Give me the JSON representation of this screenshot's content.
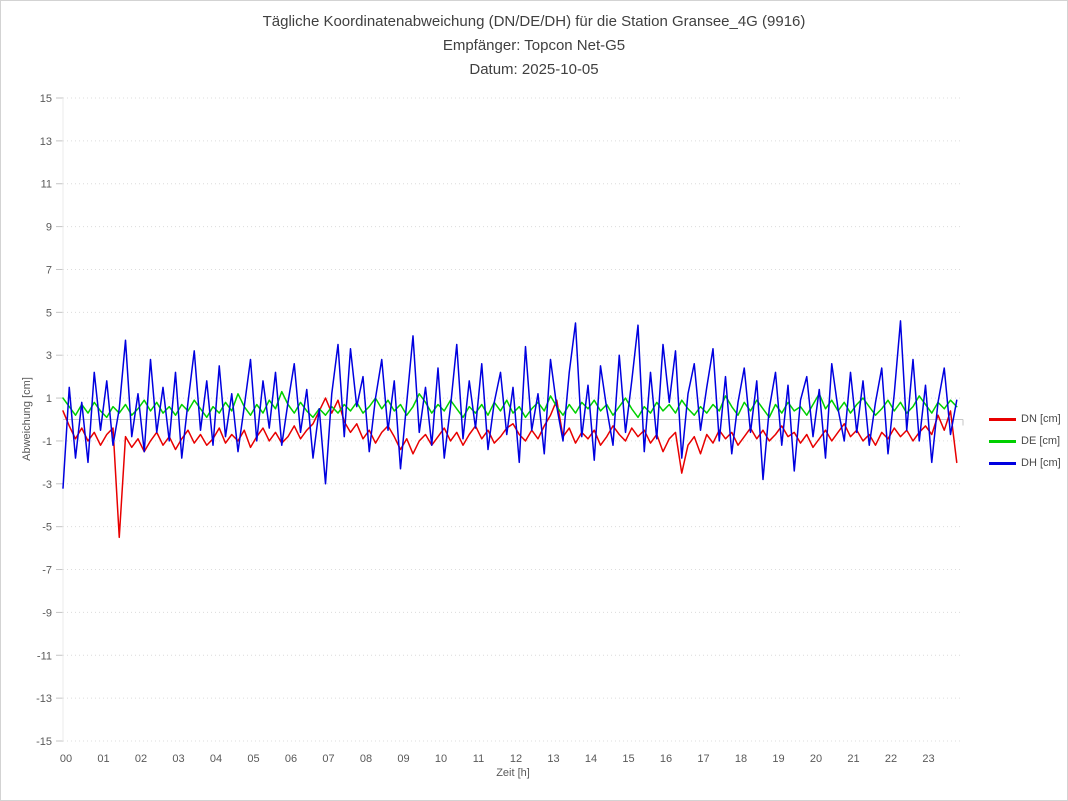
{
  "header": {
    "title": "Tägliche Koordinatenabweichung (DN/DE/DH) für die Station Gransee_4G (9916)",
    "subtitle": "Empfänger: Topcon Net-G5",
    "date_line": "Datum: 2025-10-05"
  },
  "colors": {
    "dn": "#e80000",
    "de": "#00d000",
    "dh": "#0000e0",
    "grid": "#dcdcdc",
    "zero_line": "#c8c8c8",
    "axis_line": "#ebebeb",
    "tick": "#c4c4c4",
    "tick_text": "#595959",
    "title_text": "#404040"
  },
  "chart_data": {
    "type": "line",
    "title": "Tägliche Koordinatenabweichung (DN/DE/DH) für die Station Gransee_4G (9916)",
    "subtitle": "Empfänger: Topcon Net-G5",
    "date_label": "Datum: 2025-10-05",
    "xlabel": "Zeit [h]",
    "ylabel": "Abweichung [cm]",
    "xlim": [
      0,
      24
    ],
    "ylim": [
      -15,
      15
    ],
    "grid": "horizontal-dotted",
    "legend_position": "right",
    "x_ticks": [
      "00",
      "01",
      "02",
      "03",
      "04",
      "05",
      "06",
      "07",
      "08",
      "09",
      "10",
      "11",
      "12",
      "13",
      "14",
      "15",
      "16",
      "17",
      "18",
      "19",
      "20",
      "21",
      "22",
      "23"
    ],
    "y_ticks": [
      15,
      13,
      11,
      9,
      7,
      5,
      3,
      1,
      -1,
      -3,
      -5,
      -7,
      -9,
      -11,
      -13,
      -15
    ],
    "x_minutes_interval": 10,
    "series": [
      {
        "name": "DN [cm]",
        "color": "#e80000",
        "values": [
          0.4,
          -0.3,
          -0.9,
          -0.4,
          -1.0,
          -0.6,
          -1.2,
          -0.7,
          -0.4,
          -5.5,
          -0.8,
          -1.3,
          -0.9,
          -1.5,
          -1.0,
          -0.6,
          -1.2,
          -0.8,
          -1.4,
          -0.9,
          -0.5,
          -1.1,
          -0.7,
          -1.2,
          -0.9,
          -0.4,
          -1.1,
          -0.7,
          -1.0,
          -0.5,
          -1.3,
          -0.8,
          -0.4,
          -1.0,
          -0.6,
          -1.1,
          -0.8,
          -0.3,
          -0.9,
          -0.5,
          -0.2,
          0.4,
          1.0,
          0.3,
          0.9,
          -0.1,
          -0.6,
          -0.2,
          -0.9,
          -0.5,
          -1.1,
          -0.6,
          -0.3,
          -0.8,
          -1.4,
          -0.9,
          -1.6,
          -1.0,
          -0.7,
          -1.2,
          -0.8,
          -0.4,
          -1.0,
          -0.6,
          -1.2,
          -0.7,
          -0.3,
          -0.9,
          -0.5,
          -1.1,
          -0.8,
          -0.4,
          -0.2,
          -0.7,
          -1.0,
          -0.5,
          -0.9,
          -0.3,
          0.2,
          0.9,
          -0.8,
          -0.4,
          -1.1,
          -0.6,
          -0.9,
          -0.5,
          -1.2,
          -0.8,
          -0.3,
          -0.7,
          -1.0,
          -0.4,
          -0.8,
          -0.5,
          -1.1,
          -0.7,
          -1.5,
          -0.9,
          -0.6,
          -2.5,
          -1.2,
          -0.8,
          -1.6,
          -0.7,
          -1.1,
          -0.5,
          -0.9,
          -0.6,
          -1.2,
          -0.8,
          -0.4,
          -0.9,
          -0.5,
          -1.0,
          -0.7,
          -0.3,
          -0.8,
          -0.6,
          -1.1,
          -0.7,
          -1.3,
          -0.9,
          -0.5,
          -1.0,
          -0.6,
          -0.2,
          -0.8,
          -0.5,
          -1.0,
          -0.7,
          -1.2,
          -0.6,
          -0.9,
          -0.4,
          -0.8,
          -0.5,
          -1.0,
          -0.6,
          -0.3,
          -0.7,
          0.2,
          -0.5,
          0.4,
          -2.0
        ]
      },
      {
        "name": "DE [cm]",
        "color": "#00d000",
        "values": [
          1.0,
          0.6,
          0.2,
          0.7,
          0.3,
          0.8,
          0.4,
          0.1,
          0.6,
          0.3,
          0.7,
          0.2,
          0.5,
          0.9,
          0.4,
          0.8,
          0.3,
          0.6,
          0.2,
          0.7,
          0.4,
          0.9,
          0.5,
          0.1,
          0.6,
          0.3,
          0.8,
          0.4,
          1.2,
          0.6,
          0.2,
          0.7,
          0.3,
          0.9,
          0.5,
          1.3,
          0.7,
          0.3,
          0.8,
          0.4,
          0.1,
          0.5,
          0.2,
          0.6,
          0.3,
          0.7,
          0.4,
          0.8,
          0.3,
          0.6,
          1.0,
          0.5,
          0.9,
          0.4,
          0.7,
          0.2,
          0.6,
          1.2,
          0.8,
          0.3,
          0.7,
          0.4,
          0.9,
          0.5,
          0.1,
          0.6,
          0.3,
          0.7,
          0.2,
          0.8,
          0.4,
          0.9,
          0.3,
          0.6,
          0.1,
          0.5,
          0.8,
          0.4,
          1.1,
          0.6,
          0.2,
          0.7,
          0.3,
          0.8,
          0.5,
          0.9,
          0.4,
          0.7,
          0.2,
          0.6,
          1.0,
          0.5,
          0.1,
          0.6,
          0.3,
          0.8,
          0.4,
          0.7,
          0.3,
          0.9,
          0.5,
          0.2,
          0.6,
          0.3,
          0.7,
          0.4,
          1.1,
          0.6,
          0.2,
          0.8,
          0.4,
          0.9,
          0.5,
          0.1,
          0.7,
          0.3,
          0.8,
          0.4,
          0.6,
          0.2,
          0.7,
          1.2,
          0.5,
          0.9,
          0.4,
          0.8,
          0.3,
          0.7,
          1.0,
          0.6,
          0.2,
          0.5,
          0.9,
          0.4,
          0.8,
          0.3,
          0.6,
          1.1,
          0.7,
          0.3,
          0.8,
          0.5,
          0.9,
          0.6
        ]
      },
      {
        "name": "DH [cm]",
        "color": "#0000e0",
        "values": [
          -3.2,
          1.5,
          -1.8,
          0.8,
          -2.0,
          2.2,
          -0.5,
          1.8,
          -1.2,
          0.5,
          3.7,
          -0.8,
          1.2,
          -1.5,
          2.8,
          -0.6,
          1.5,
          -1.0,
          2.2,
          -1.8,
          0.8,
          3.2,
          -0.5,
          1.8,
          -1.2,
          2.5,
          -0.8,
          1.2,
          -1.5,
          0.6,
          2.8,
          -1.0,
          1.8,
          -0.4,
          2.2,
          -1.2,
          0.8,
          2.6,
          -0.6,
          1.4,
          -1.8,
          0.5,
          -3.0,
          1.2,
          3.5,
          -0.8,
          3.3,
          0.6,
          2.0,
          -1.5,
          1.0,
          2.8,
          -0.5,
          1.8,
          -2.3,
          0.8,
          3.9,
          -0.6,
          1.5,
          -1.2,
          2.4,
          -1.8,
          0.6,
          3.5,
          -0.9,
          1.8,
          -0.4,
          2.6,
          -1.4,
          0.8,
          2.2,
          -0.7,
          1.5,
          -2.0,
          3.4,
          -0.5,
          1.2,
          -1.6,
          2.8,
          0.6,
          -1.0,
          2.2,
          4.5,
          -0.8,
          1.6,
          -1.9,
          2.5,
          0.5,
          -1.2,
          3.0,
          -0.6,
          1.8,
          4.4,
          -1.5,
          2.2,
          -0.9,
          3.5,
          0.8,
          3.2,
          -1.8,
          1.2,
          2.6,
          -0.5,
          1.5,
          3.3,
          -1.0,
          2.0,
          -1.6,
          0.8,
          2.4,
          -0.6,
          1.8,
          -2.8,
          0.5,
          2.2,
          -1.2,
          1.6,
          -2.4,
          0.9,
          2.0,
          -0.8,
          1.4,
          -1.8,
          2.6,
          0.5,
          -1.0,
          2.2,
          -0.6,
          1.8,
          -1.2,
          0.8,
          2.4,
          -1.6,
          1.2,
          4.6,
          -0.5,
          2.8,
          -1.0,
          1.6,
          -2.0,
          0.8,
          2.4,
          -0.7,
          0.9
        ]
      }
    ]
  }
}
